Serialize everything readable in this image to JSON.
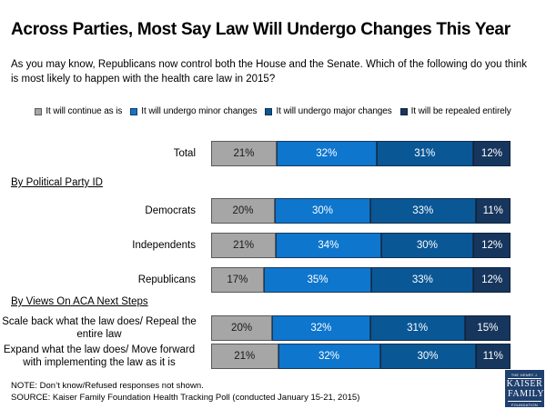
{
  "title": "Across Parties, Most Say Law Will Undergo Changes This Year",
  "subtitle": "As you may know, Republicans now control both the House and the Senate. Which of the following do you think is most likely to happen with the health care law in 2015?",
  "chart_data": {
    "type": "bar",
    "subtype": "horizontal-stacked",
    "unit": "percent",
    "value_suffix": "%",
    "legend_position": "top",
    "series": [
      {
        "key": "continue-as-is",
        "name": "It will continue as is",
        "color": "#a6a6a6",
        "border": "#5a5a5a",
        "text_color": "#1a1a1a"
      },
      {
        "key": "minor-changes",
        "name": "It will undergo minor changes",
        "color": "#0e76cd",
        "border": "#173a5f",
        "text_color": "#ffffff"
      },
      {
        "key": "major-changes",
        "name": "It will undergo major changes",
        "color": "#0a5796",
        "border": "#12304f",
        "text_color": "#ffffff"
      },
      {
        "key": "repealed-entirely",
        "name": "It will be repealed entirely",
        "color": "#17365d",
        "border": "#0e2440",
        "text_color": "#ffffff"
      }
    ],
    "sections": [
      {
        "header": null,
        "rows": [
          {
            "label": "Total",
            "values": [
              21,
              32,
              31,
              12
            ]
          }
        ]
      },
      {
        "header": "By Political Party ID",
        "rows": [
          {
            "label": "Democrats",
            "values": [
              20,
              30,
              33,
              11
            ]
          },
          {
            "label": "Independents",
            "values": [
              21,
              34,
              30,
              12
            ]
          },
          {
            "label": "Republicans",
            "values": [
              17,
              35,
              33,
              12
            ]
          }
        ]
      },
      {
        "header": "By Views On ACA Next Steps",
        "rows": [
          {
            "label": "Scale back what the law does/ Repeal the entire law",
            "values": [
              20,
              32,
              31,
              15
            ],
            "align": "center"
          },
          {
            "label": "Expand what the law does/ Move forward with implementing the law as it is",
            "values": [
              21,
              32,
              30,
              11
            ],
            "align": "center"
          }
        ]
      }
    ]
  },
  "note": "NOTE: Don’t know/Refused responses not shown.",
  "source": "SOURCE: Kaiser Family Foundation Health Tracking Poll (conducted January 15-21, 2015)",
  "logo": {
    "line1": "THE HENRY J.",
    "line2": "KAISER",
    "line3": "FAMILY",
    "line4": "FOUNDATION"
  }
}
